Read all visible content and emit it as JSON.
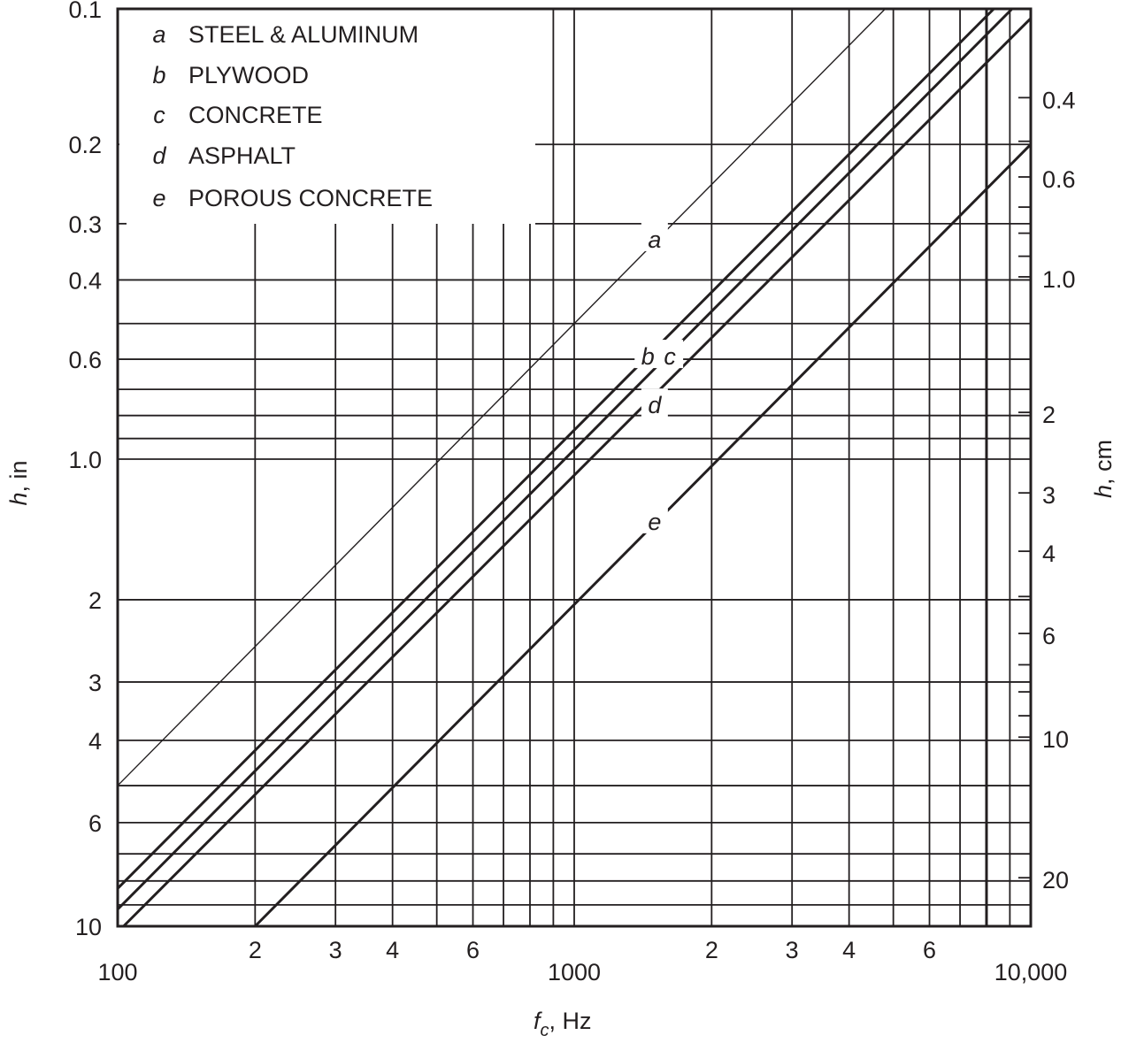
{
  "chart_data": {
    "type": "line",
    "title": "",
    "xlabel": "f_c , Hz",
    "xlabel_main": "f",
    "xlabel_sub": "c",
    "xlabel_unit": ", Hz",
    "ylabel_left": "h, in",
    "ylabel_left_var": "h",
    "ylabel_left_unit": ", in",
    "ylabel_right": "h, cm",
    "ylabel_right_var": "h",
    "ylabel_right_unit": ", cm",
    "x_scale": "log",
    "y_scale": "log",
    "y_inverted": true,
    "xlim": [
      100,
      10000
    ],
    "ylim_in": [
      0.1,
      10
    ],
    "grid": true,
    "legend_position": "upper-left",
    "x_ticks": [
      {
        "value": 100,
        "label": "100",
        "major": true
      },
      {
        "value": 200,
        "label": "2"
      },
      {
        "value": 300,
        "label": "3"
      },
      {
        "value": 400,
        "label": "4"
      },
      {
        "value": 500,
        "label": ""
      },
      {
        "value": 600,
        "label": "6"
      },
      {
        "value": 700,
        "label": ""
      },
      {
        "value": 800,
        "label": ""
      },
      {
        "value": 900,
        "label": ""
      },
      {
        "value": 1000,
        "label": "1000",
        "major": true
      },
      {
        "value": 2000,
        "label": "2"
      },
      {
        "value": 3000,
        "label": "3"
      },
      {
        "value": 4000,
        "label": "4"
      },
      {
        "value": 5000,
        "label": ""
      },
      {
        "value": 6000,
        "label": "6"
      },
      {
        "value": 7000,
        "label": ""
      },
      {
        "value": 8000,
        "label": ""
      },
      {
        "value": 9000,
        "label": ""
      },
      {
        "value": 10000,
        "label": "10,000",
        "major": true
      }
    ],
    "y_ticks_in": [
      {
        "value": 0.1,
        "label": "0.1"
      },
      {
        "value": 0.2,
        "label": "0.2"
      },
      {
        "value": 0.3,
        "label": "0.3"
      },
      {
        "value": 0.4,
        "label": "0.4"
      },
      {
        "value": 0.5,
        "label": ""
      },
      {
        "value": 0.6,
        "label": "0.6"
      },
      {
        "value": 0.7,
        "label": ""
      },
      {
        "value": 0.8,
        "label": ""
      },
      {
        "value": 0.9,
        "label": ""
      },
      {
        "value": 1.0,
        "label": "1.0"
      },
      {
        "value": 2,
        "label": "2"
      },
      {
        "value": 3,
        "label": "3"
      },
      {
        "value": 4,
        "label": "4"
      },
      {
        "value": 5,
        "label": ""
      },
      {
        "value": 6,
        "label": "6"
      },
      {
        "value": 7,
        "label": ""
      },
      {
        "value": 8,
        "label": ""
      },
      {
        "value": 9,
        "label": ""
      },
      {
        "value": 10,
        "label": "10"
      }
    ],
    "y_ticks_cm": [
      {
        "value": 0.4,
        "label": "0.4"
      },
      {
        "value": 0.5,
        "label": ""
      },
      {
        "value": 0.6,
        "label": "0.6"
      },
      {
        "value": 0.7,
        "label": ""
      },
      {
        "value": 0.8,
        "label": ""
      },
      {
        "value": 0.9,
        "label": ""
      },
      {
        "value": 1.0,
        "label": "1.0"
      },
      {
        "value": 2,
        "label": "2"
      },
      {
        "value": 3,
        "label": "3"
      },
      {
        "value": 4,
        "label": "4"
      },
      {
        "value": 5,
        "label": ""
      },
      {
        "value": 6,
        "label": "6"
      },
      {
        "value": 7,
        "label": ""
      },
      {
        "value": 8,
        "label": ""
      },
      {
        "value": 9,
        "label": ""
      },
      {
        "value": 10,
        "label": "10"
      },
      {
        "value": 20,
        "label": "20"
      }
    ],
    "series": [
      {
        "key": "a",
        "name": "STEEL & ALUMINUM",
        "weight": "thin",
        "points": [
          {
            "f": 100,
            "h": 5.0
          },
          {
            "f": 4800,
            "h": 0.1
          }
        ],
        "label_at": {
          "f": 1500,
          "h": 0.33
        }
      },
      {
        "key": "b",
        "name": "PLYWOOD",
        "weight": "thick",
        "points": [
          {
            "f": 100,
            "h": 8.3
          },
          {
            "f": 8300,
            "h": 0.1
          }
        ],
        "label_at": {
          "f": 1450,
          "h": 0.6
        }
      },
      {
        "key": "c",
        "name": "CONCRETE",
        "weight": "thick",
        "points": [
          {
            "f": 100,
            "h": 9.2
          },
          {
            "f": 9100,
            "h": 0.1
          }
        ],
        "label_at": {
          "f": 1620,
          "h": 0.6
        }
      },
      {
        "key": "d",
        "name": "ASPHALT",
        "weight": "thick",
        "points": [
          {
            "f": 103,
            "h": 10.0
          },
          {
            "f": 10000,
            "h": 0.105
          }
        ],
        "label_at": {
          "f": 1500,
          "h": 0.77
        }
      },
      {
        "key": "e",
        "name": "POROUS CONCRETE",
        "weight": "thick",
        "points": [
          {
            "f": 200,
            "h": 10.0
          },
          {
            "f": 10000,
            "h": 0.2
          }
        ],
        "label_at": {
          "f": 1500,
          "h": 1.38
        }
      }
    ]
  },
  "legend": {
    "items": [
      {
        "key": "a",
        "label": "STEEL & ALUMINUM"
      },
      {
        "key": "b",
        "label": "PLYWOOD"
      },
      {
        "key": "c",
        "label": "CONCRETE"
      },
      {
        "key": "d",
        "label": "ASPHALT"
      },
      {
        "key": "e",
        "label": "POROUS CONCRETE"
      }
    ]
  }
}
